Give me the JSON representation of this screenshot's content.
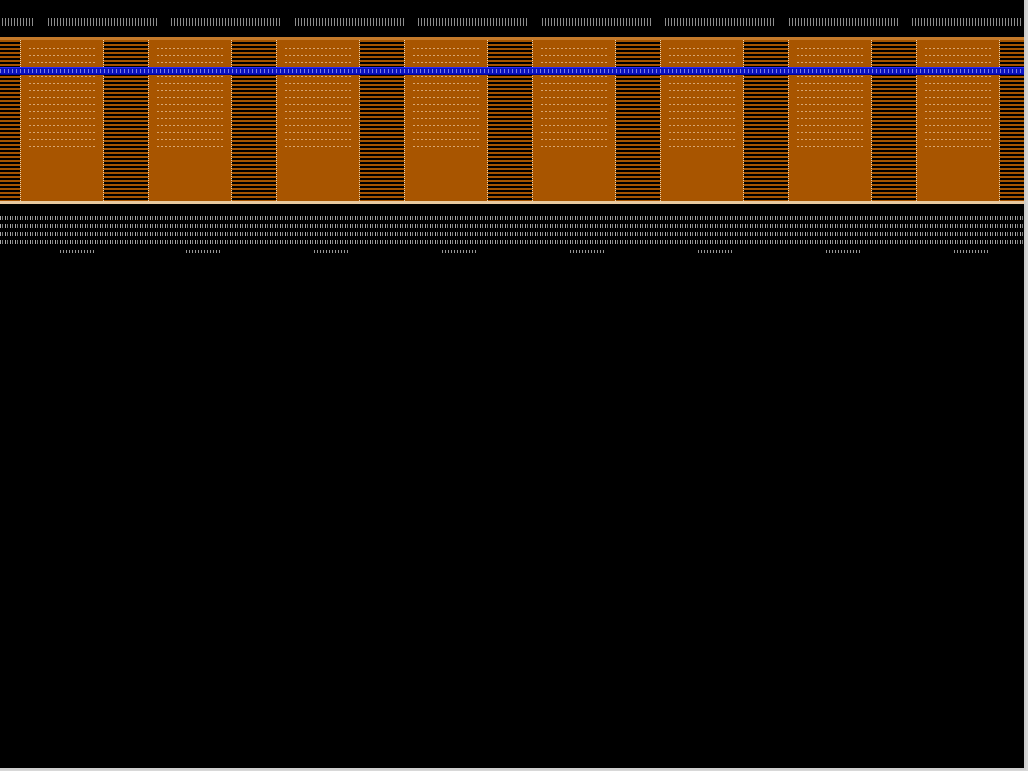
{
  "screen": {
    "background": "#000000"
  },
  "menu_bar": {
    "item_count": 9
  },
  "panel": {
    "orange": "#a85500",
    "stripe": "#a65400",
    "selection_color": "#0a12c0",
    "column_count": 8
  },
  "output": {
    "line_count": 4,
    "tag_count": 8
  }
}
